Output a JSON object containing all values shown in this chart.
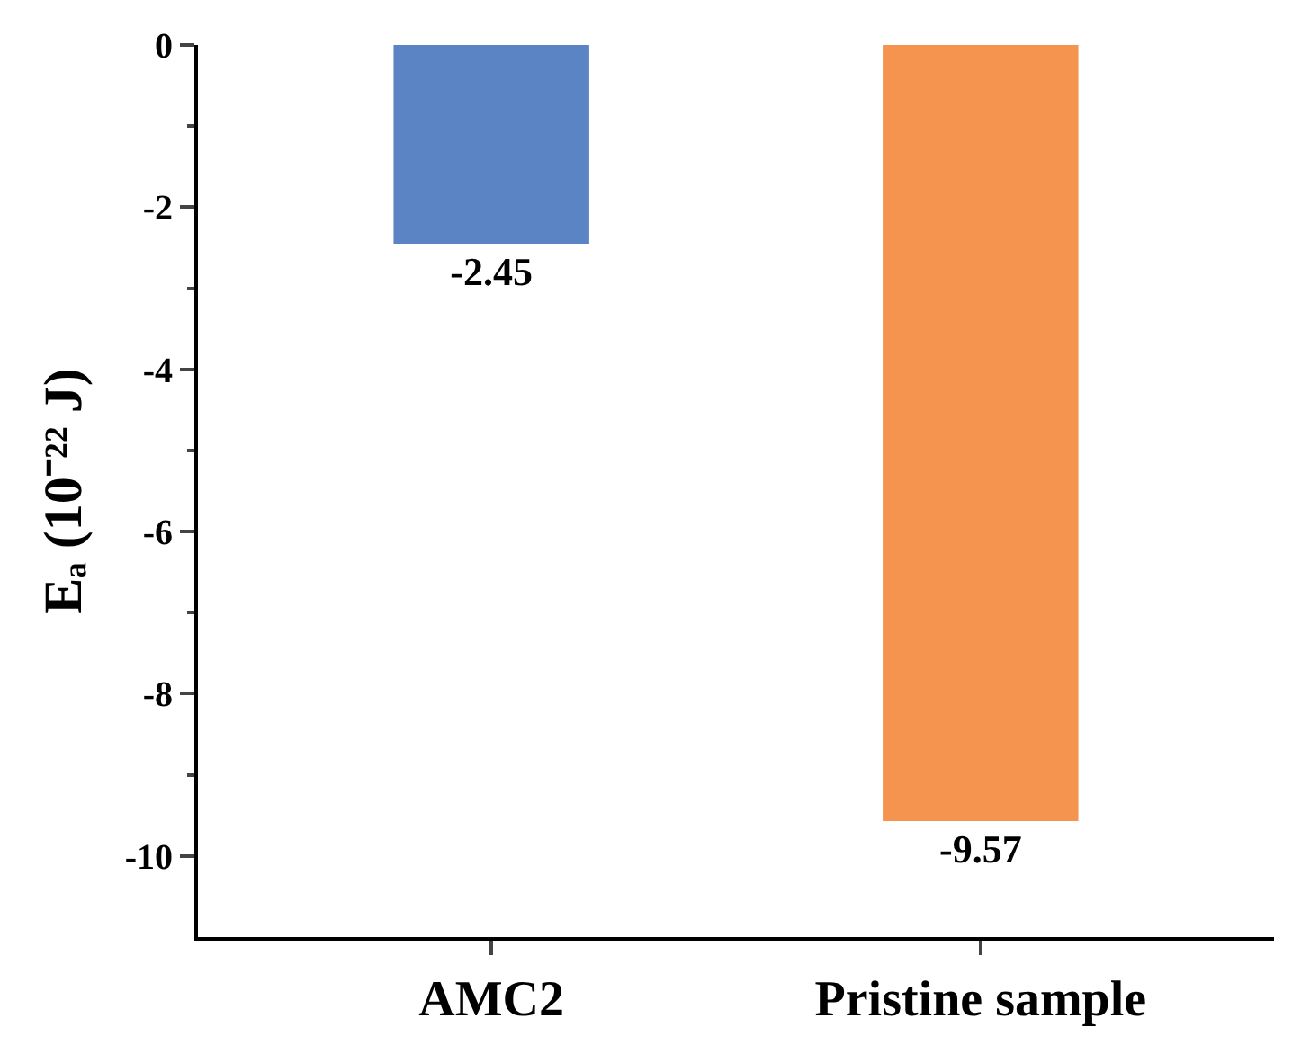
{
  "chart_data": {
    "type": "bar",
    "ylabel": "Eₐ (10⁻²² J)",
    "categories": [
      "AMC2",
      "Pristine sample"
    ],
    "values": [
      -2.45,
      -9.57
    ],
    "colors": [
      "#5b84c4",
      "#f5944f"
    ],
    "ylim": [
      -11,
      0
    ],
    "yticks": [
      -10,
      -8,
      -6,
      -4,
      -2,
      0
    ],
    "data_labels": true,
    "legend": false
  }
}
